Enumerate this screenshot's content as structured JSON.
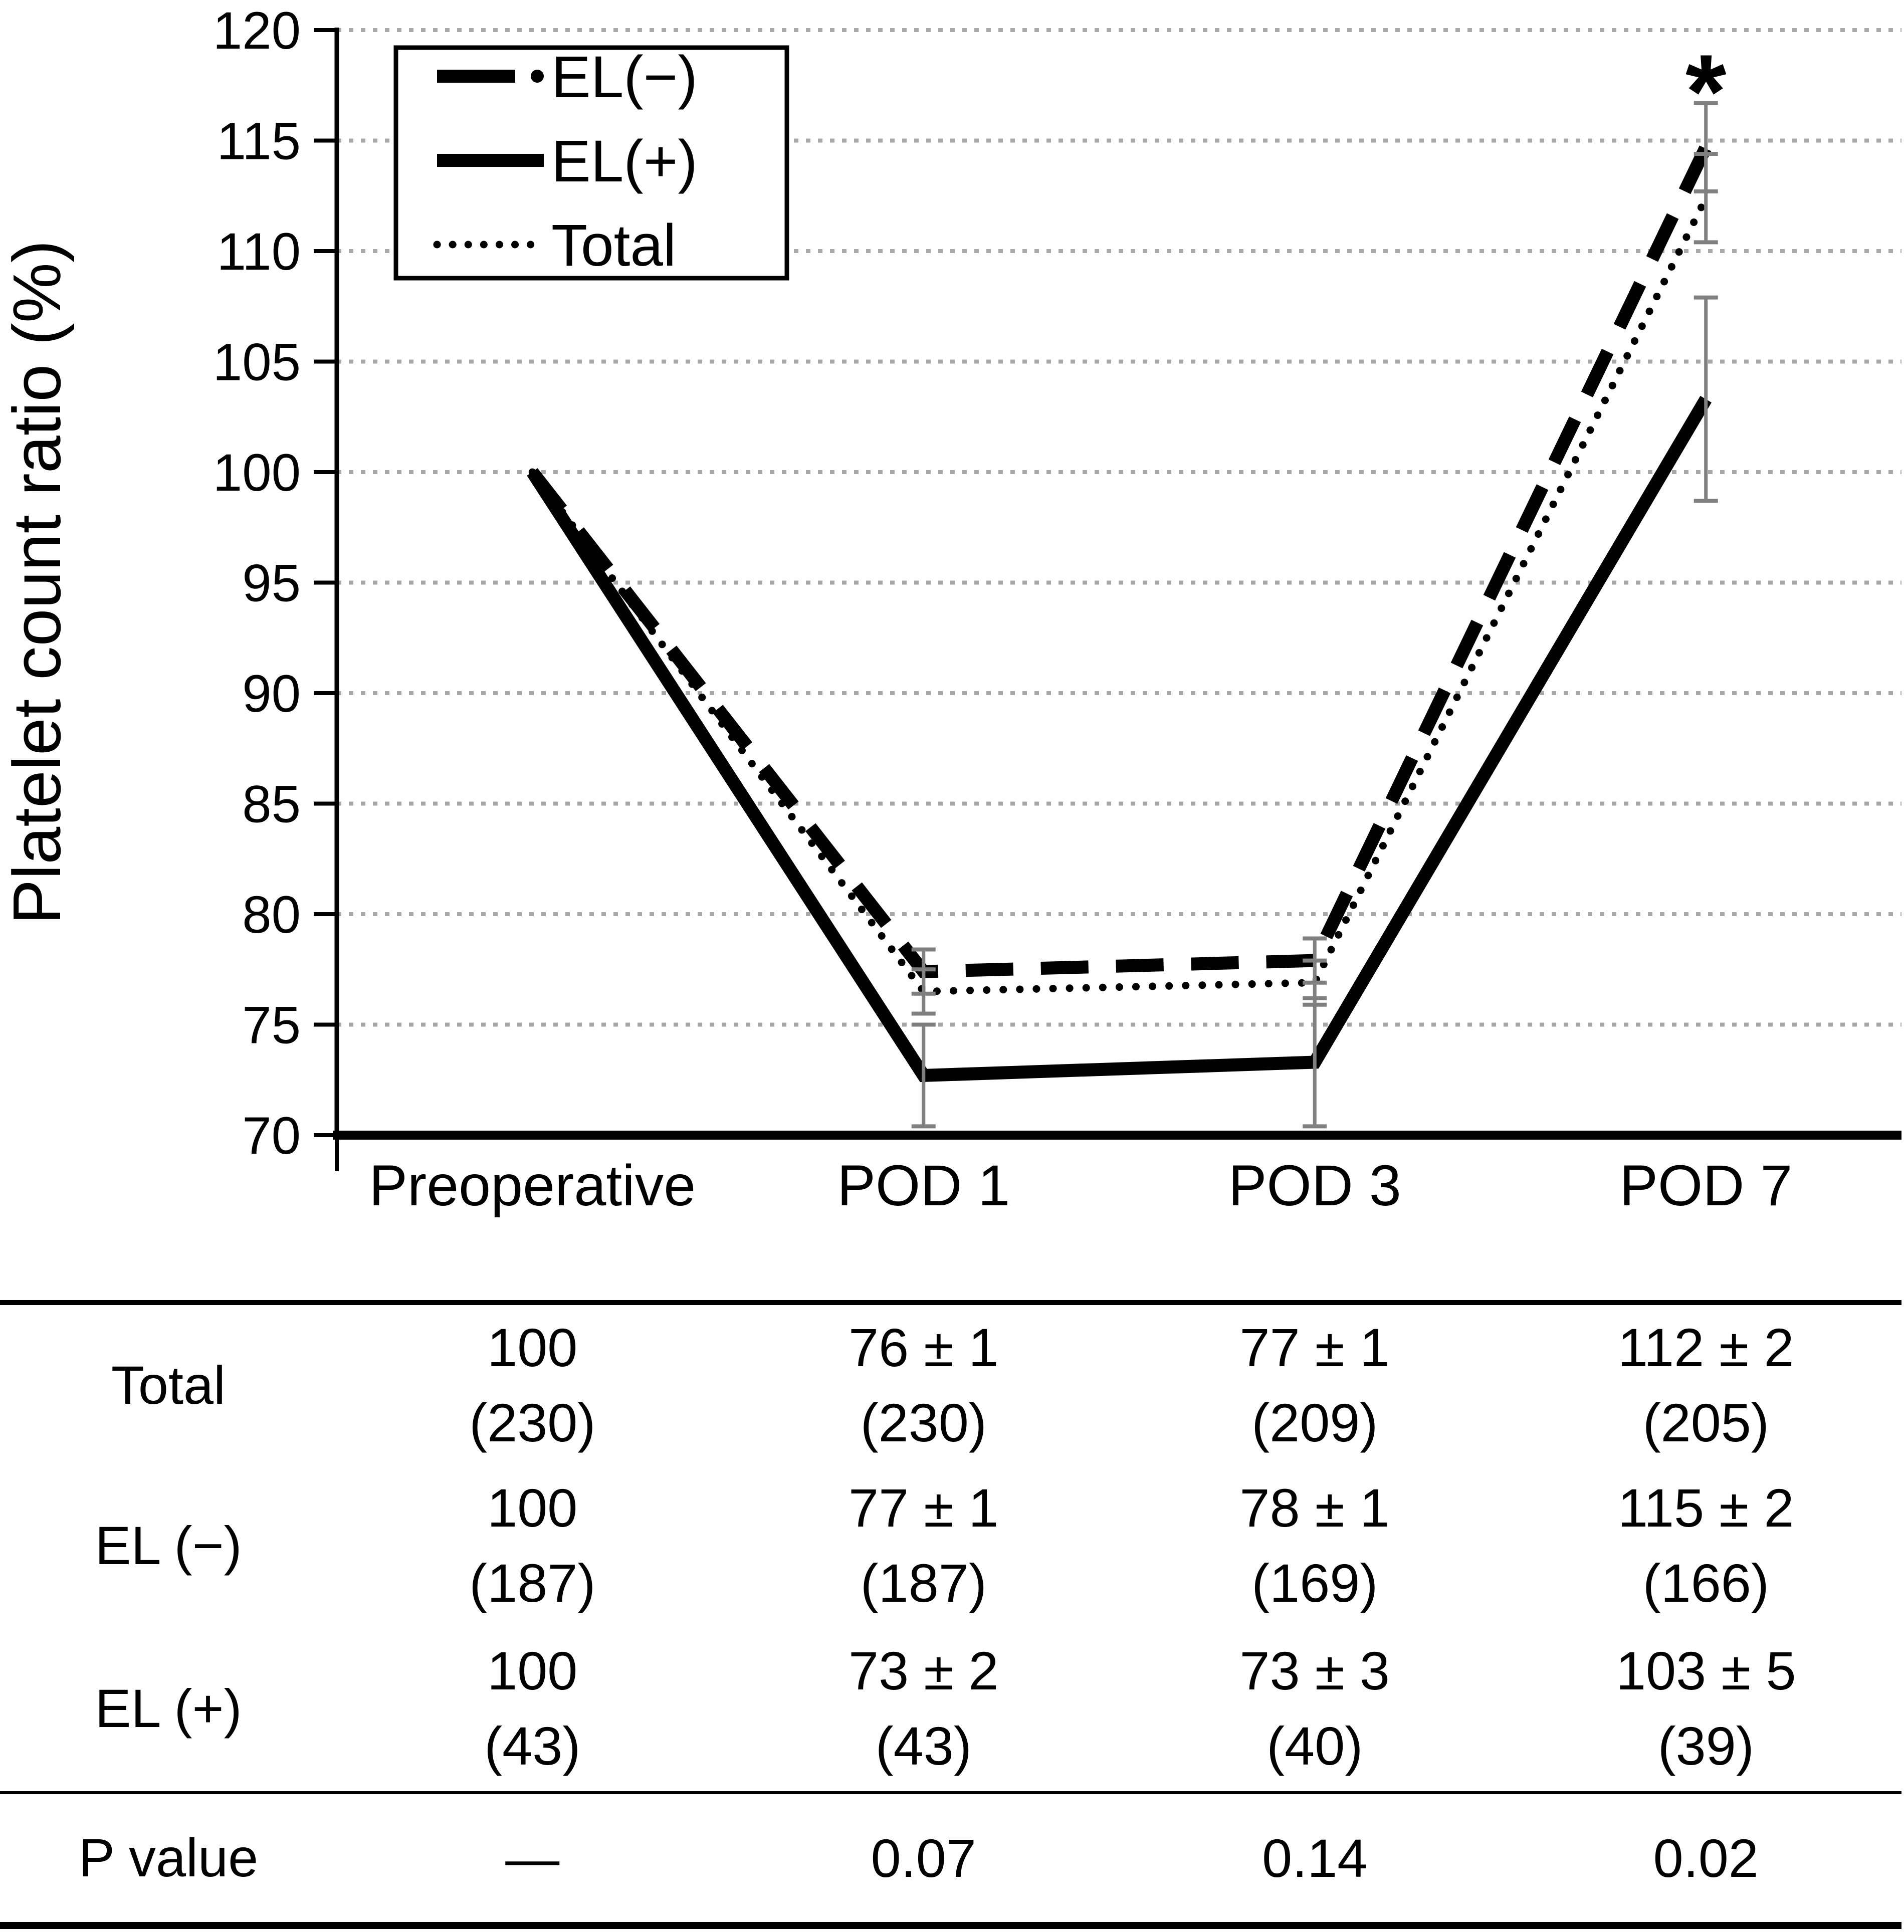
{
  "figure": {
    "background": "#ffffff"
  },
  "chart_data": {
    "type": "line",
    "title": "",
    "xlabel": "",
    "ylabel": "Platelet count ratio (%)",
    "categories": [
      "Preoperative",
      "POD 1",
      "POD 3",
      "POD 7"
    ],
    "ylim": [
      70,
      120
    ],
    "yticks": [
      70,
      75,
      80,
      85,
      90,
      95,
      100,
      105,
      110,
      115,
      120
    ],
    "grid": "horizontal-dotted",
    "legend_position": "top-left-inside",
    "series": [
      {
        "name": "EL(−)",
        "style": "dashed",
        "values": [
          100,
          77.4,
          77.9,
          114.7
        ],
        "errors": [
          0,
          1,
          1,
          2
        ]
      },
      {
        "name": "EL(+)",
        "style": "solid",
        "values": [
          100,
          72.7,
          73.3,
          103.3
        ],
        "errors": [
          0,
          2.3,
          2.9,
          4.6
        ]
      },
      {
        "name": "Total",
        "style": "dotted",
        "values": [
          100,
          76.5,
          76.9,
          112.4
        ],
        "errors": [
          0,
          1,
          1,
          2
        ]
      }
    ],
    "annotation": {
      "text": "*",
      "category": "POD 7"
    }
  },
  "colors": {
    "line": "#000000",
    "grid": "#a8a8a8",
    "error_bar": "#808080",
    "background": "#ffffff"
  },
  "table": {
    "rows": [
      {
        "label": "Total",
        "cells": [
          {
            "l1": "100",
            "l2": "(230)"
          },
          {
            "l1": "76 ± 1",
            "l2": "(230)"
          },
          {
            "l1": "77 ± 1",
            "l2": "(209)"
          },
          {
            "l1": "112 ± 2",
            "l2": "(205)"
          }
        ]
      },
      {
        "label": "EL (−)",
        "cells": [
          {
            "l1": "100",
            "l2": "(187)"
          },
          {
            "l1": "77 ± 1",
            "l2": "(187)"
          },
          {
            "l1": "78 ± 1",
            "l2": "(169)"
          },
          {
            "l1": "115 ± 2",
            "l2": "(166)"
          }
        ]
      },
      {
        "label": "EL (+)",
        "cells": [
          {
            "l1": "100",
            "l2": "(43)"
          },
          {
            "l1": "73 ± 2",
            "l2": "(43)"
          },
          {
            "l1": "73 ± 3",
            "l2": "(40)"
          },
          {
            "l1": "103 ± 5",
            "l2": "(39)"
          }
        ]
      },
      {
        "label": "P value",
        "cells": [
          {
            "l1": "—",
            "l2": ""
          },
          {
            "l1": "0.07",
            "l2": ""
          },
          {
            "l1": "0.14",
            "l2": ""
          },
          {
            "l1": "0.02",
            "l2": ""
          }
        ]
      }
    ]
  }
}
